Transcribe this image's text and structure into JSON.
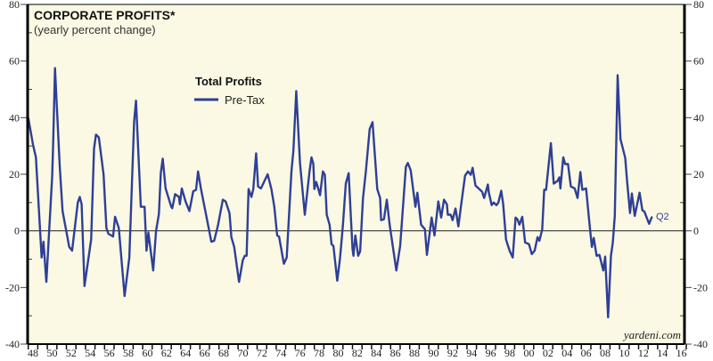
{
  "chart_data": {
    "type": "line",
    "title": "CORPORATE PROFITS*",
    "subtitle": "(yearly percent change)",
    "legend_title": "Total Profits",
    "legend_placement": "top-center",
    "source": "yardeni.com",
    "annotation": "Q2",
    "ylim": [
      -40,
      80
    ],
    "yticks": [
      80,
      60,
      40,
      20,
      0,
      -20,
      -40
    ],
    "xlim": [
      1948,
      2016
    ],
    "xtick_labels": [
      "48",
      "50",
      "52",
      "54",
      "56",
      "58",
      "60",
      "62",
      "64",
      "66",
      "68",
      "70",
      "72",
      "74",
      "76",
      "78",
      "80",
      "82",
      "84",
      "86",
      "88",
      "90",
      "92",
      "94",
      "96",
      "98",
      "00",
      "02",
      "04",
      "06",
      "08",
      "10",
      "12",
      "14",
      "16"
    ],
    "grid": false,
    "zero_line": true,
    "colors": {
      "line": "#2f3f96",
      "background": "#fbf9e3",
      "axis": "#111111"
    },
    "series": [
      {
        "name": "Pre-Tax",
        "x": [
          1948.0,
          1948.5,
          1948.8,
          1949.4,
          1949.6,
          1949.9,
          1950.5,
          1950.6,
          1950.8,
          1951.3,
          1951.6,
          1952.3,
          1952.6,
          1953.2,
          1953.4,
          1953.6,
          1953.9,
          1954.6,
          1954.9,
          1955.1,
          1955.4,
          1955.9,
          1956.2,
          1956.4,
          1956.9,
          1957.1,
          1957.5,
          1958.1,
          1958.6,
          1959.1,
          1959.3,
          1959.8,
          1960.2,
          1960.4,
          1960.6,
          1961.1,
          1961.4,
          1961.7,
          1961.9,
          1962.1,
          1962.4,
          1963.0,
          1963.1,
          1963.4,
          1963.8,
          1963.9,
          1964.1,
          1964.5,
          1964.9,
          1965.3,
          1965.6,
          1965.8,
          1966.1,
          1966.8,
          1967.2,
          1967.5,
          1967.9,
          1968.4,
          1968.7,
          1969.1,
          1969.3,
          1969.6,
          1970.1,
          1970.5,
          1970.7,
          1970.9,
          1971.1,
          1971.4,
          1971.6,
          1971.9,
          1972.1,
          1972.4,
          1973.1,
          1973.5,
          1973.8,
          1974.1,
          1974.3,
          1974.8,
          1975.1,
          1975.6,
          1975.8,
          1976.1,
          1976.5,
          1977.0,
          1977.5,
          1977.7,
          1977.9,
          1978.0,
          1978.2,
          1978.4,
          1978.6,
          1978.9,
          1979.1,
          1979.3,
          1979.6,
          1979.8,
          1980.0,
          1980.4,
          1980.7,
          1981.0,
          1981.3,
          1981.6,
          1982.0,
          1982.1,
          1982.3,
          1982.6,
          1982.8,
          1983.1,
          1983.4,
          1983.8,
          1984.1,
          1984.6,
          1984.9,
          1985.0,
          1985.3,
          1985.6,
          1985.9,
          1986.6,
          1987.0,
          1987.6,
          1987.8,
          1988.1,
          1988.6,
          1988.8,
          1989.2,
          1989.6,
          1989.8,
          1990.3,
          1990.6,
          1991.0,
          1991.3,
          1991.6,
          1991.9,
          1992.0,
          1992.3,
          1992.5,
          1992.8,
          1993.1,
          1993.4,
          1993.8,
          1994.1,
          1994.4,
          1994.6,
          1994.9,
          1995.3,
          1995.6,
          1995.8,
          1996.2,
          1996.3,
          1996.6,
          1996.8,
          1997.1,
          1997.3,
          1997.6,
          1997.8,
          1998.1,
          1998.5,
          1998.8,
          1999.1,
          1999.3,
          1999.5,
          1999.8,
          2000.1,
          2000.5,
          2000.8,
          2001.1,
          2001.4,
          2001.6,
          2001.9,
          2002.1,
          2002.3,
          2002.8,
          2003.1,
          2003.5,
          2003.7,
          2003.8,
          2004.1,
          2004.3,
          2004.6,
          2004.9,
          2005.3,
          2005.6,
          2005.9,
          2006.1,
          2006.5,
          2006.9,
          2007.1,
          2007.3,
          2007.6,
          2007.9,
          2008.3,
          2008.5,
          2008.8,
          2009.1,
          2009.3,
          2009.5,
          2009.8,
          2010.1,
          2010.6,
          2010.8,
          2011.1,
          2011.3,
          2011.6,
          2012.1,
          2012.4,
          2012.6,
          2013.1,
          2013.4
        ],
        "y": [
          40,
          30.5,
          26,
          -9.4,
          -3.8,
          -18,
          19,
          29,
          57.5,
          23,
          7,
          -5.7,
          -7,
          10,
          12,
          9.4,
          -19.5,
          -3,
          29,
          34,
          33,
          20,
          1,
          -1,
          -2,
          5,
          1,
          -23,
          -9.4,
          38.7,
          46,
          8.5,
          8.5,
          -7,
          -0.6,
          -14,
          0,
          6,
          20.4,
          25.5,
          15,
          8.5,
          8,
          13,
          12,
          9.4,
          15,
          10.4,
          7,
          14,
          14.5,
          21,
          15,
          3,
          -3.8,
          -3.5,
          2,
          11,
          10.4,
          6.3,
          -2.2,
          -5.7,
          -18,
          -10.4,
          -8.8,
          -8.8,
          14.8,
          12,
          14.8,
          27.4,
          15.7,
          15,
          20,
          14.8,
          8.5,
          -1.6,
          -2,
          -11.6,
          -9.4,
          21,
          28.3,
          49.4,
          24,
          5.7,
          21,
          26,
          23.6,
          14.8,
          17.3,
          15,
          12.6,
          21,
          19.8,
          5.7,
          2.2,
          -4.7,
          -5.3,
          -17.6,
          -9.4,
          2.2,
          16.7,
          20.4,
          -6.3,
          -8.8,
          -1.6,
          -8.8,
          -7.2,
          11.6,
          21,
          36,
          38.4,
          14.8,
          11.6,
          3.8,
          4.1,
          11,
          2.2,
          -14,
          -5.3,
          22.6,
          24,
          21.4,
          8.5,
          13.5,
          2.2,
          0.6,
          -8.5,
          4.7,
          -1.6,
          10.4,
          4.7,
          11,
          9.4,
          5.7,
          5.7,
          3.8,
          7.9,
          1.6,
          9.4,
          19.5,
          21,
          19.8,
          22.3,
          16,
          14.8,
          13.8,
          11.6,
          16.4,
          13.5,
          9.1,
          10,
          9.1,
          10,
          14.2,
          9.4,
          -3.1,
          -7.2,
          -9.4,
          4.7,
          4.1,
          2.2,
          5,
          -4.1,
          -4.7,
          -8.2,
          -7,
          -2.2,
          -3.5,
          0.6,
          14.5,
          14.5,
          31,
          16.7,
          17.6,
          18.9,
          15,
          26,
          23.6,
          23.6,
          15.7,
          15,
          11.6,
          20.8,
          14.5,
          15,
          1,
          -5.7,
          -2.5,
          -8.8,
          -8.5,
          -14,
          -9.1,
          -30.5,
          -8.8,
          -4.1,
          5.3,
          55,
          32.4,
          25.8,
          17.3,
          6.3,
          13.2,
          5.3,
          13.5,
          7.2,
          6.9,
          2.5,
          5
        ]
      }
    ]
  }
}
